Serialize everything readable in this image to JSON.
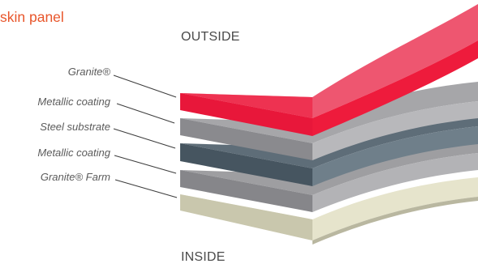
{
  "title": "skin panel",
  "labels": {
    "outside": "OUTSIDE",
    "inside": "INSIDE"
  },
  "layers": [
    {
      "name": "Granite®",
      "color": "#ee1b3c"
    },
    {
      "name": "Metallic coating",
      "color": "#8c8c8e"
    },
    {
      "name": "Steel substrate",
      "color": "#4b5a64"
    },
    {
      "name": "Metallic coating",
      "color": "#8c8c8e"
    },
    {
      "name": "Granite® Farm",
      "color": "#d8d6bf"
    }
  ]
}
